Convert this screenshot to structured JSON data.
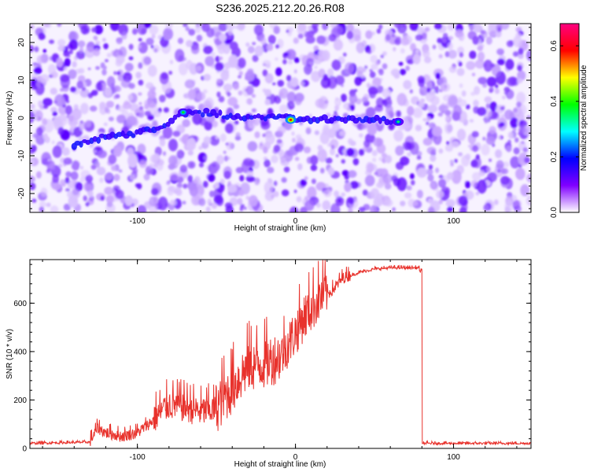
{
  "figure": {
    "title": "S236.2025.212.20.26.R08"
  },
  "chart_data": [
    {
      "type": "heatmap",
      "title": "S236.2025.212.20.26.R08",
      "xlabel": "Height of straight line (km)",
      "ylabel": "Frequency (Hz)",
      "xlim": [
        -168,
        149
      ],
      "ylim": [
        -25,
        25
      ],
      "xticks": [
        -100,
        0,
        100
      ],
      "yticks": [
        -20,
        -10,
        0,
        10,
        20
      ],
      "xtick_labels": [
        "-100",
        "0",
        "100"
      ],
      "ytick_labels": [
        "-20",
        "-10",
        "0",
        "10",
        "20"
      ],
      "colorbar": {
        "label": "Normalized spectral amplitude",
        "range": [
          0,
          0.68
        ],
        "ticks": [
          "0.0",
          "0.2",
          "0.4",
          "0.6"
        ],
        "tick_values": [
          0,
          0.2,
          0.4,
          0.6
        ],
        "colormap": [
          "#ffffff",
          "#8000ff",
          "#0000ff",
          "#00ffff",
          "#00ff00",
          "#ffff00",
          "#ff0000",
          "#ff0080"
        ]
      },
      "signal_trace": {
        "x": [
          -140,
          -130,
          -120,
          -110,
          -100,
          -90,
          -80,
          -70,
          -60,
          -50,
          -40,
          -30,
          -20,
          -10,
          -5,
          0,
          10,
          20,
          30,
          40,
          50,
          60,
          65
        ],
        "y": [
          -7,
          -6,
          -5,
          -4.5,
          -4,
          -3,
          -1,
          1.5,
          1.5,
          1,
          0.5,
          0.3,
          0,
          0,
          0.2,
          -0.5,
          -0.5,
          -0.3,
          -0.2,
          -0.3,
          -0.5,
          -0.8,
          -1
        ],
        "peaks": [
          {
            "x": -71,
            "y": 1.5,
            "amplitude": 0.25
          },
          {
            "x": -3,
            "y": -0.5,
            "amplitude": 0.45
          },
          {
            "x": 65,
            "y": -1,
            "amplitude": 0.22
          }
        ]
      }
    },
    {
      "type": "line",
      "xlabel": "Height of straight line (km)",
      "ylabel": "SNR (10 * v/v)",
      "xlim": [
        -168,
        149
      ],
      "ylim": [
        0,
        780
      ],
      "xticks": [
        -100,
        0,
        100
      ],
      "yticks": [
        0,
        200,
        400,
        600
      ],
      "xtick_labels": [
        "-100",
        "0",
        "100"
      ],
      "ytick_labels": [
        "0",
        "200",
        "400",
        "600"
      ],
      "series": [
        {
          "color": "#e8322c",
          "x": [
            -168,
            -130,
            -125,
            -120,
            -110,
            -100,
            -90,
            -80,
            -70,
            -60,
            -50,
            -40,
            -30,
            -20,
            -10,
            -5,
            0,
            5,
            10,
            15,
            20,
            25,
            30,
            40,
            50,
            60,
            70,
            78,
            79,
            80,
            81,
            90,
            100,
            110,
            120,
            130,
            149
          ],
          "y": [
            20,
            25,
            80,
            60,
            45,
            60,
            110,
            170,
            160,
            140,
            150,
            230,
            320,
            330,
            360,
            410,
            460,
            520,
            560,
            600,
            630,
            660,
            700,
            725,
            740,
            745,
            745,
            745,
            730,
            730,
            20,
            20,
            20,
            20,
            20,
            20,
            20
          ]
        }
      ]
    }
  ]
}
